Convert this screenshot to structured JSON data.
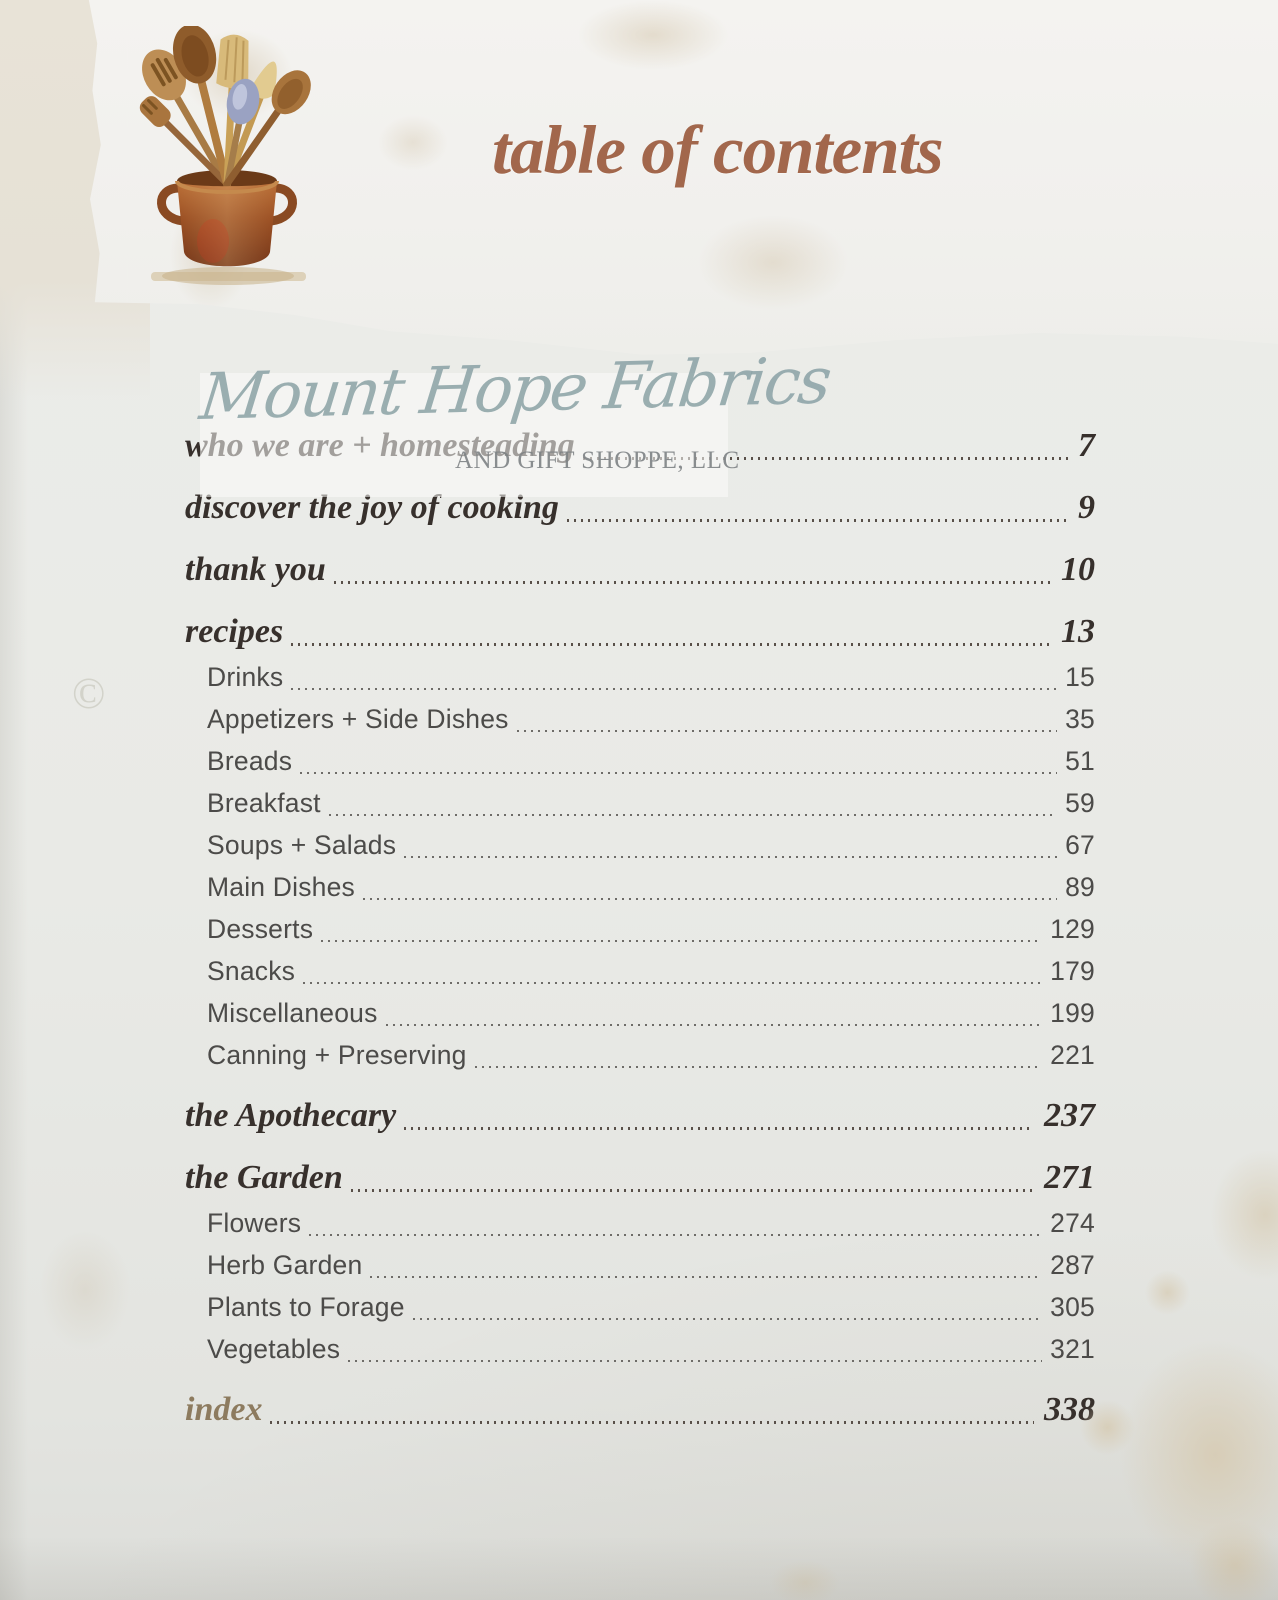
{
  "page_title": "table of contents",
  "illustration": "wooden-utensils-in-copper-pot-watercolor",
  "copyright_mark": "©",
  "watermark": {
    "script_text": "Mount Hope Fabrics",
    "subtext": "AND GIFT SHOPPE, LLC"
  },
  "colors": {
    "title_brown": "#a2674c",
    "section_text_dark": "#37302c",
    "sub_text_gray": "#4c4b49",
    "index_tan": "#8d7b5f",
    "watermark_blue_gray": "#89a1a4",
    "header_paper": "#f1f0ed",
    "page_background": "#e9eae6",
    "beige_corner": "#e6e1d6"
  },
  "toc": {
    "entries": [
      {
        "label": "who we are + homesteading",
        "page": "7",
        "level": "section"
      },
      {
        "label": "discover the joy of cooking",
        "page": "9",
        "level": "section"
      },
      {
        "label": "thank you",
        "page": "10",
        "level": "section"
      },
      {
        "label": "recipes",
        "page": "13",
        "level": "section"
      },
      {
        "label": "Drinks",
        "page": "15",
        "level": "sub"
      },
      {
        "label": "Appetizers + Side Dishes",
        "page": "35",
        "level": "sub"
      },
      {
        "label": "Breads",
        "page": "51",
        "level": "sub"
      },
      {
        "label": "Breakfast",
        "page": "59",
        "level": "sub"
      },
      {
        "label": "Soups + Salads",
        "page": "67",
        "level": "sub"
      },
      {
        "label": "Main Dishes",
        "page": "89",
        "level": "sub"
      },
      {
        "label": "Desserts",
        "page": "129",
        "level": "sub"
      },
      {
        "label": "Snacks",
        "page": "179",
        "level": "sub"
      },
      {
        "label": "Miscellaneous",
        "page": "199",
        "level": "sub"
      },
      {
        "label": "Canning + Preserving",
        "page": "221",
        "level": "sub"
      },
      {
        "label": "the Apothecary",
        "page": "237",
        "level": "section"
      },
      {
        "label": "the Garden",
        "page": "271",
        "level": "section"
      },
      {
        "label": "Flowers",
        "page": "274",
        "level": "sub"
      },
      {
        "label": "Herb Garden",
        "page": "287",
        "level": "sub"
      },
      {
        "label": "Plants to Forage",
        "page": "305",
        "level": "sub"
      },
      {
        "label": "Vegetables",
        "page": "321",
        "level": "sub"
      },
      {
        "label": "index",
        "page": "338",
        "level": "section",
        "muted": true
      }
    ]
  }
}
